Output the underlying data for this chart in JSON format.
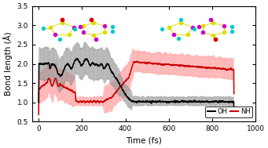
{
  "xlabel": "Time (fs)",
  "ylabel": "Bond length (Å)",
  "xlim": [
    -30,
    1000
  ],
  "ylim": [
    0.5,
    3.5
  ],
  "xticks": [
    0,
    200,
    400,
    600,
    800,
    1000
  ],
  "yticks": [
    0.5,
    1.0,
    1.5,
    2.0,
    2.5,
    3.0,
    3.5
  ],
  "oh_color": "#000000",
  "nh_color": "#cc0000",
  "oh_band_color": "#999999",
  "nh_band_color": "#ff9999",
  "legend_oh": "OH",
  "legend_nh": "NH",
  "seed": 42
}
